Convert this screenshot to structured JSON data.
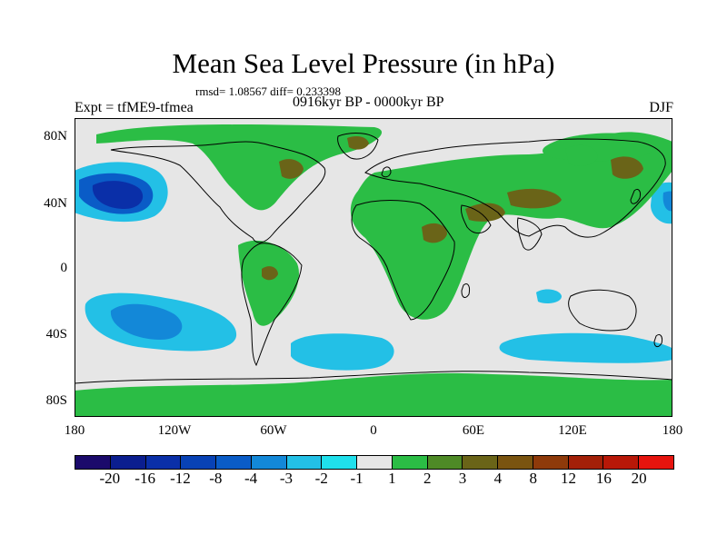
{
  "title": "Mean Sea Level Pressure (in hPa)",
  "stats": "rmsd= 1.08567 diff= 0.233398",
  "experiment": "Expt = tfME9-tfmea",
  "period": "0916kyr BP - 0000kyr BP",
  "season": "DJF",
  "lat_labels": [
    "80N",
    "40N",
    "0",
    "40S",
    "80S"
  ],
  "lon_labels": [
    "180",
    "120W",
    "60W",
    "0",
    "60E",
    "120E",
    "180"
  ],
  "colorbar": {
    "labels": [
      "-20",
      "-16",
      "-12",
      "-8",
      "-4",
      "-3",
      "-2",
      "-1",
      "1",
      "2",
      "3",
      "4",
      "8",
      "12",
      "16",
      "20"
    ],
    "colors": [
      "#1b0a6b",
      "#0b1e8f",
      "#0a2fa8",
      "#0842b5",
      "#0a5cc7",
      "#1388d8",
      "#23c0e6",
      "#1fe0ec",
      "#e6e6e6",
      "#2bbd45",
      "#4e8a26",
      "#6a6418",
      "#7a5410",
      "#8e3a0a",
      "#a32008",
      "#b81808",
      "#e6140e"
    ]
  },
  "colors": {
    "background": "#e6e6e6",
    "positive": "#2bbd45",
    "strong_positive": "#6a6418",
    "negative": "#23c0e6",
    "strong_negative": "#0a5cc7",
    "very_strong_negative": "#0a2fa8"
  }
}
